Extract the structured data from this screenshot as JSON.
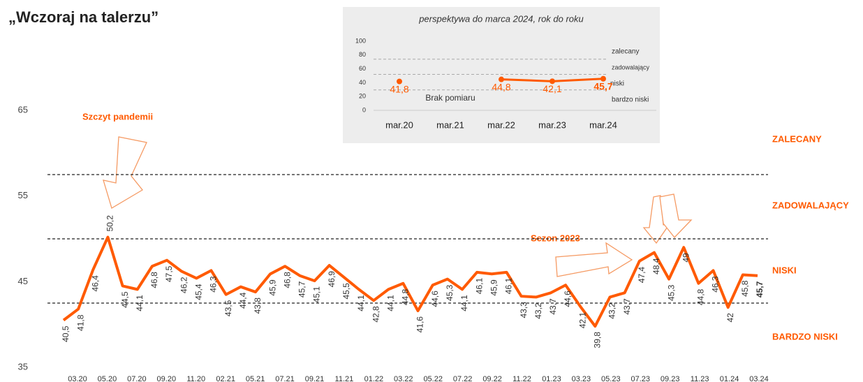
{
  "title": "„Wczoraj na talerzu”",
  "chart_data": [
    {
      "type": "line",
      "color": "#ff5a00",
      "annotations": [
        "Szczyt pandemii",
        "Sezon 2023"
      ],
      "ylim": [
        35,
        65
      ],
      "yticks": [
        35,
        45,
        55,
        65
      ],
      "x_tick_labels": [
        "03.20",
        "05.20",
        "07.20",
        "09.20",
        "11.20",
        "02.21",
        "05.21",
        "07.21",
        "09.21",
        "11.21",
        "01.22",
        "03.22",
        "05.22",
        "07.22",
        "09.22",
        "11.22",
        "01.23",
        "03.23",
        "05.23",
        "07.23",
        "09.23",
        "11.23",
        "01.24",
        "03.24"
      ],
      "levels": [
        {
          "name": "ZALECANY",
          "value": 57.5
        },
        {
          "name": "ZADOWALAJĄCY",
          "value": 50
        },
        {
          "name": "NISKI",
          "value": 42.5
        },
        {
          "name": "BARDZO NISKI"
        }
      ],
      "values": [
        40.5,
        41.8,
        46.4,
        50.2,
        44.5,
        44.1,
        46.8,
        47.5,
        46.2,
        45.4,
        46.3,
        43.5,
        44.4,
        43.8,
        45.9,
        46.8,
        45.7,
        45.1,
        46.9,
        45.5,
        44.1,
        42.8,
        44.1,
        44.8,
        41.6,
        44.6,
        45.3,
        44.1,
        46.1,
        45.9,
        46.1,
        43.3,
        43.2,
        43.7,
        44.6,
        42.1,
        39.8,
        43.2,
        43.7,
        47.4,
        48.4,
        45.3,
        49,
        44.8,
        46.3,
        42,
        45.8,
        45.7
      ],
      "value_labels": [
        "40,5",
        "41,8",
        "46,4",
        "50,2",
        "44,5",
        "44,1",
        "46,8",
        "47,5",
        "46,2",
        "45,4",
        "46,3",
        "43,5",
        "44,4",
        "43,8",
        "45,9",
        "46,8",
        "45,7",
        "45,1",
        "46,9",
        "45,5",
        "44,1",
        "42,8",
        "44,1",
        "44,8",
        "41,6",
        "44,6",
        "45,3",
        "44,1",
        "46,1",
        "45,9",
        "46,1",
        "43,3",
        "43,2",
        "43,7",
        "44,6",
        "42,1",
        "39,8",
        "43,2",
        "43,7",
        "47,4",
        "48,4",
        "45,3",
        "49",
        "44,8",
        "46,3",
        "42",
        "45,8",
        "45,7"
      ]
    },
    {
      "type": "line",
      "title": "perspektywa do marca 2024, rok do roku",
      "color": "#ff5a00",
      "categories": [
        "mar.20",
        "mar.21",
        "mar.22",
        "mar.23",
        "mar.24"
      ],
      "values": [
        41.8,
        null,
        44.8,
        42.1,
        45.7
      ],
      "value_labels": [
        "41,8",
        null,
        "44,8",
        "42,1",
        "45,7"
      ],
      "annotation": "Brak pomiaru",
      "ylim": [
        0,
        100
      ],
      "yticks": [
        0,
        20,
        40,
        60,
        80,
        100
      ],
      "levels": [
        {
          "name": "zalecany",
          "value": 74
        },
        {
          "name": "zadowalający",
          "value": 52
        },
        {
          "name": "niski",
          "value": 29.5
        },
        {
          "name": "bardzo niski"
        }
      ]
    }
  ]
}
